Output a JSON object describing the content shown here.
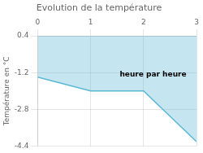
{
  "chart_data": {
    "type": "line",
    "title": "Evolution de la température",
    "ylabel": "Température en °C",
    "annotations": [
      {
        "text": "heure par heure",
        "x": 1.55,
        "y": -1.3
      }
    ],
    "x": [
      0,
      1,
      2,
      3
    ],
    "values": [
      -1.4,
      -2.0,
      -2.0,
      -4.2
    ],
    "color": "#5ab8d4",
    "xlim": [
      0,
      3
    ],
    "xticks": [
      0,
      1,
      2,
      3
    ],
    "ylim": [
      -4.4,
      0.4
    ],
    "yticks": [
      0.4,
      -1.2,
      -2.8,
      -4.4
    ],
    "grid": true
  }
}
